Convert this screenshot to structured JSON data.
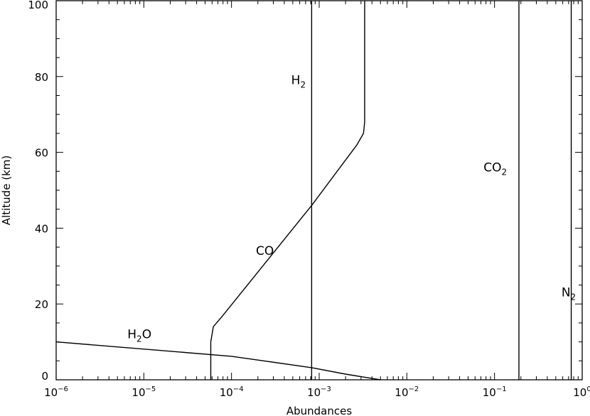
{
  "chart_data": {
    "type": "line",
    "xlabel": "Abundances",
    "ylabel": "Altitude (km)",
    "x_scale": "log",
    "xlim": [
      1e-06,
      1.0
    ],
    "ylim": [
      0,
      100
    ],
    "x_ticks": [
      {
        "value": 1e-06,
        "base": "10",
        "exp": "−6"
      },
      {
        "value": 1e-05,
        "base": "10",
        "exp": "−5"
      },
      {
        "value": 0.0001,
        "base": "10",
        "exp": "−4"
      },
      {
        "value": 0.001,
        "base": "10",
        "exp": "−3"
      },
      {
        "value": 0.01,
        "base": "10",
        "exp": "−2"
      },
      {
        "value": 0.1,
        "base": "10",
        "exp": "−1"
      },
      {
        "value": 1.0,
        "base": "10",
        "exp": "0"
      }
    ],
    "y_ticks": [
      "0",
      "20",
      "40",
      "60",
      "80",
      "100"
    ],
    "grid": false,
    "series": [
      {
        "name": "H2",
        "label_main": "H",
        "label_sub": "2",
        "label_tail": "",
        "label_at": [
          0.00048,
          78
        ],
        "x": [
          0.00082,
          0.00082
        ],
        "y": [
          0,
          100
        ]
      },
      {
        "name": "CO",
        "label_main": "CO",
        "label_sub": "",
        "label_tail": "",
        "label_at": [
          0.00019,
          33
        ],
        "x": [
          5.8e-05,
          5.8e-05,
          6.2e-05,
          8e-05,
          0.00082,
          0.0027,
          0.0032,
          0.0033,
          0.0033
        ],
        "y": [
          0,
          10,
          14,
          17,
          46,
          62,
          65,
          68,
          100
        ]
      },
      {
        "name": "H2O",
        "label_main": "H",
        "label_sub": "2",
        "label_tail": "O",
        "label_at": [
          6.5e-06,
          11
        ],
        "x": [
          1e-06,
          0.0001,
          0.00082,
          0.002,
          0.005
        ],
        "y": [
          10,
          6.2,
          3.2,
          1.5,
          0
        ]
      },
      {
        "name": "CO2",
        "label_main": "CO",
        "label_sub": "2",
        "label_tail": "",
        "label_at": [
          0.075,
          55
        ],
        "x": [
          0.19,
          0.19
        ],
        "y": [
          0,
          100
        ]
      },
      {
        "name": "N2",
        "label_main": "N",
        "label_sub": "2",
        "label_tail": "",
        "label_at": [
          0.58,
          22
        ],
        "x": [
          0.75,
          0.75
        ],
        "y": [
          0,
          100
        ]
      }
    ]
  }
}
